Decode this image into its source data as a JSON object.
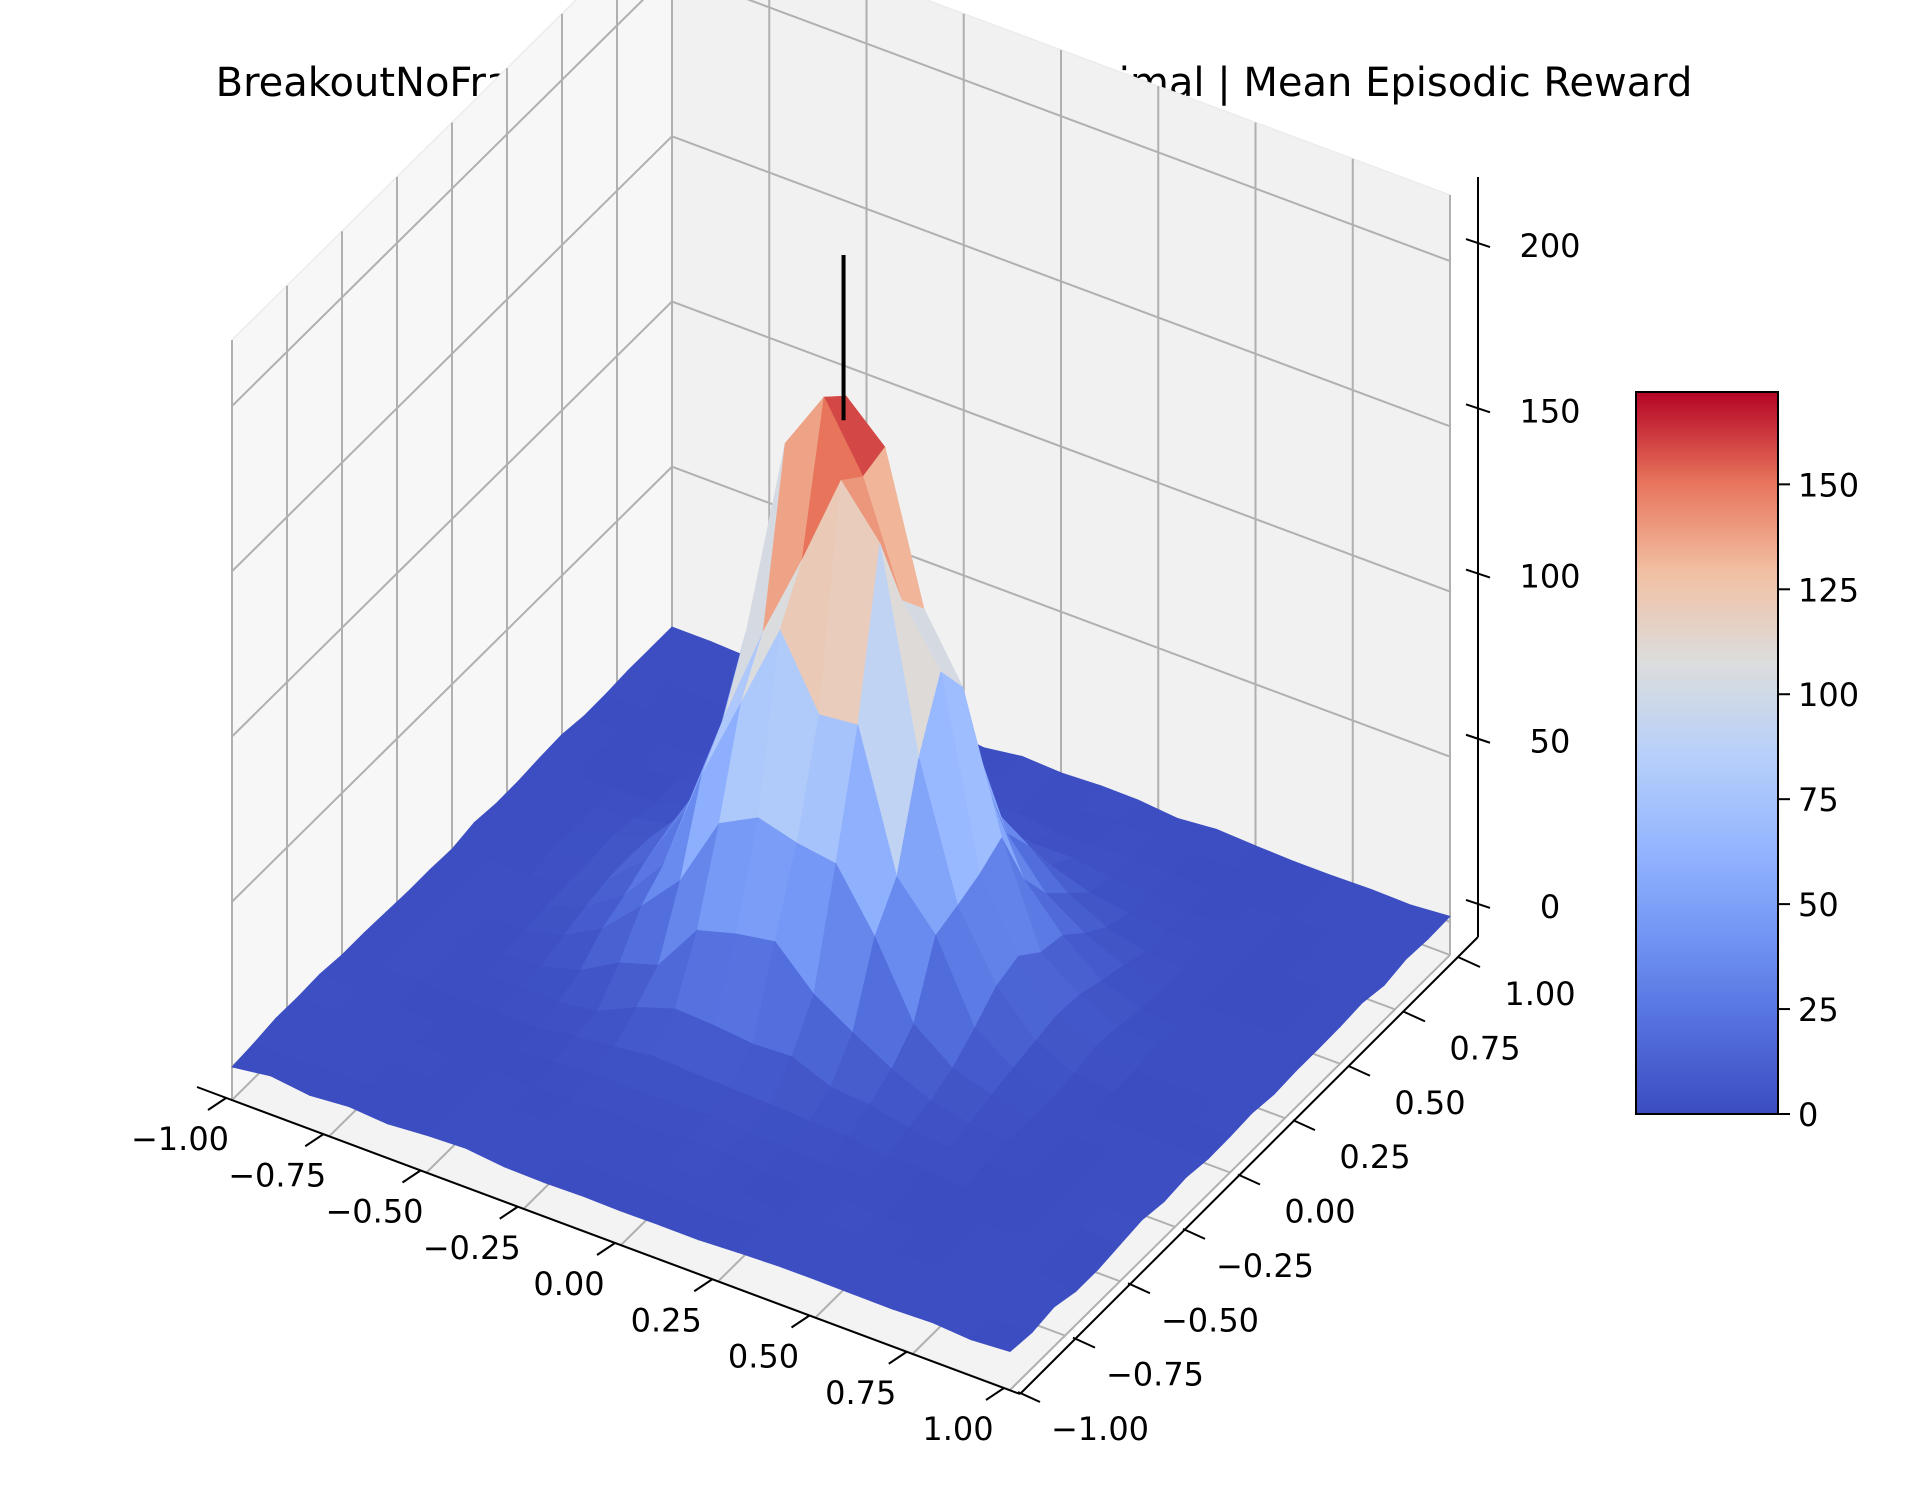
{
  "chart_data": {
    "type": "surface3d",
    "title": "BreakoutNoFrameskip-v0 | Atari | Human Optimal | Mean Episodic Reward",
    "xlabel": "",
    "ylabel": "",
    "zlabel": "",
    "colormap": "coolwarm",
    "grid": true,
    "xlim": [
      -1.0,
      1.0
    ],
    "ylim": [
      -1.0,
      1.0
    ],
    "zlim": [
      -10,
      220
    ],
    "x_ticks": [
      "−1.00",
      "−0.75",
      "−0.50",
      "−0.25",
      "0.00",
      "0.25",
      "0.50",
      "0.75",
      "1.00"
    ],
    "x_tick_values": [
      -1.0,
      -0.75,
      -0.5,
      -0.25,
      0.0,
      0.25,
      0.5,
      0.75,
      1.0
    ],
    "y_ticks": [
      "−1.00",
      "−0.75",
      "−0.50",
      "−0.25",
      "0.00",
      "0.25",
      "0.50",
      "0.75",
      "1.00"
    ],
    "y_tick_values": [
      -1.0,
      -0.75,
      -0.5,
      -0.25,
      0.0,
      0.25,
      0.5,
      0.75,
      1.0
    ],
    "z_ticks": [
      "0",
      "50",
      "100",
      "150",
      "200"
    ],
    "z_tick_values": [
      0,
      50,
      100,
      150,
      200
    ],
    "colorbar": {
      "min": 0,
      "max": 172,
      "ticks": [
        "0",
        "25",
        "50",
        "75",
        "100",
        "125",
        "150"
      ],
      "tick_values": [
        0,
        25,
        50,
        75,
        100,
        125,
        150
      ]
    },
    "surface": {
      "grid_n": 21,
      "peak_x": -0.05,
      "peak_y": 0.1,
      "peak_value": 170,
      "spread": 0.22
    },
    "marker_line": {
      "x": -0.05,
      "y": 0.1,
      "z_from": 165,
      "z_to": 215
    }
  }
}
